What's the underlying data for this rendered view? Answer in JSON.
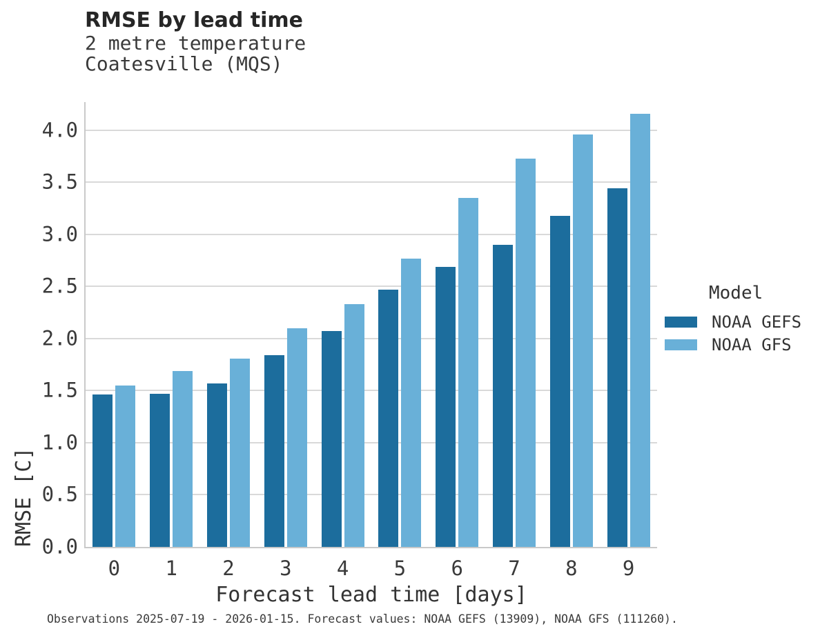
{
  "chart_data": {
    "type": "bar",
    "title": "RMSE by lead time",
    "subtitle_line1": "2 metre temperature",
    "subtitle_line2": "Coatesville (MQS)",
    "xlabel": "Forecast lead time [days]",
    "ylabel": "RMSE [C]",
    "categories": [
      "0",
      "1",
      "2",
      "3",
      "4",
      "5",
      "6",
      "7",
      "8",
      "9"
    ],
    "series": [
      {
        "name": "NOAA GEFS",
        "color": "#1c6d9d",
        "values": [
          1.46,
          1.47,
          1.57,
          1.84,
          2.07,
          2.47,
          2.69,
          2.9,
          3.18,
          3.44
        ]
      },
      {
        "name": "NOAA GFS",
        "color": "#69b0d8",
        "values": [
          1.55,
          1.69,
          1.81,
          2.1,
          2.33,
          2.77,
          3.35,
          3.73,
          3.96,
          4.16
        ]
      }
    ],
    "ylim": [
      0,
      4.27
    ],
    "yticks": [
      0.0,
      0.5,
      1.0,
      1.5,
      2.0,
      2.5,
      3.0,
      3.5,
      4.0
    ],
    "grid": true,
    "legend_title": "Model",
    "legend_position": "right",
    "caption": "Observations 2025-07-19 - 2026-01-15. Forecast values: NOAA GEFS (13909), NOAA GFS (111260)."
  },
  "colors": {
    "grid": "#d9d9d9",
    "spine": "#c9c9c9",
    "title_text": "#262626",
    "label_text": "#3a3a3a"
  }
}
